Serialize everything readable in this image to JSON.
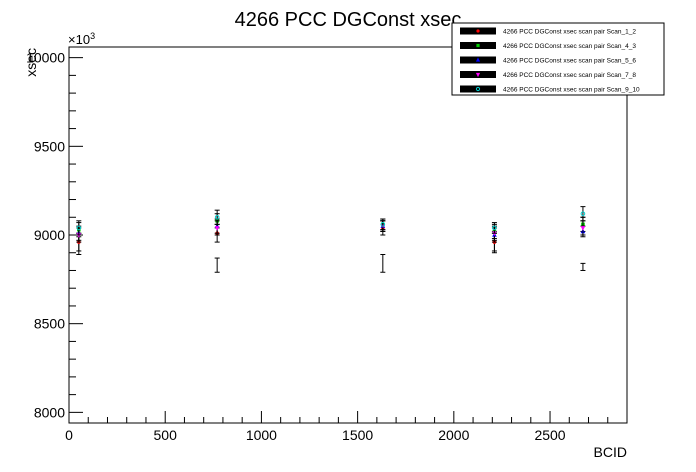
{
  "chart_data": {
    "type": "scatter",
    "title": "4266 PCC DGConst xsec",
    "xlabel": "BCID",
    "ylabel": "xsec",
    "y_multiplier": "×10",
    "y_multiplier_exp": "3",
    "xlim": [
      0,
      2900
    ],
    "ylim": [
      7940,
      10060
    ],
    "x_ticks": [
      0,
      500,
      1000,
      1500,
      2000,
      2500
    ],
    "y_ticks": [
      8000,
      8500,
      9000,
      9500,
      10000
    ],
    "grid": false,
    "legend_position": "top-right",
    "series": [
      {
        "name": "4266 PCC DGConst xsec scan pair Scan_1_2",
        "color": "#ff0000",
        "marker": "circle",
        "x": [
          51,
          770,
          1631,
          2211,
          2671
        ],
        "y": [
          8960,
          9010,
          9040,
          8960,
          9050
        ],
        "err": [
          50,
          50,
          40,
          60,
          50
        ]
      },
      {
        "name": "4266 PCC DGConst xsec scan pair Scan_4_3",
        "color": "#00cc00",
        "marker": "square",
        "x": [
          51,
          770,
          1631,
          2211,
          2671
        ],
        "y": [
          9030,
          9080,
          9060,
          9020,
          9060
        ],
        "err": [
          40,
          40,
          30,
          40,
          40
        ]
      },
      {
        "name": "4266 PCC DGConst xsec scan pair Scan_5_6",
        "color": "#0000ff",
        "marker": "triangle",
        "x": [
          51,
          770,
          1631,
          2211,
          2671
        ],
        "y": [
          9010,
          9050,
          9050,
          9000,
          9020
        ],
        "err": [
          40,
          40,
          30,
          40,
          30
        ]
      },
      {
        "name": "4266 PCC DGConst xsec scan pair Scan_7_8",
        "color": "#ff00ff",
        "marker": "triangle-down",
        "x": [
          51,
          770,
          1631,
          2211,
          2671
        ],
        "y": [
          9000,
          9040,
          9050,
          9010,
          9040
        ],
        "err": [
          40,
          40,
          30,
          40,
          40
        ]
      },
      {
        "name": "4266 PCC DGConst xsec scan pair Scan_9_10",
        "color": "#00cccc",
        "marker": "circle-open",
        "x": [
          51,
          770,
          1631,
          2211,
          2671
        ],
        "y": [
          9040,
          9100,
          9060,
          9040,
          9120
        ],
        "err": [
          40,
          40,
          30,
          30,
          40
        ]
      },
      {
        "name": "",
        "color": "#000000",
        "marker": "none",
        "x": [
          51,
          770,
          1631,
          2211,
          2671
        ],
        "y": [
          8950,
          8830,
          8840,
          8960,
          8820
        ],
        "err": [
          60,
          40,
          50,
          50,
          20
        ]
      }
    ]
  }
}
